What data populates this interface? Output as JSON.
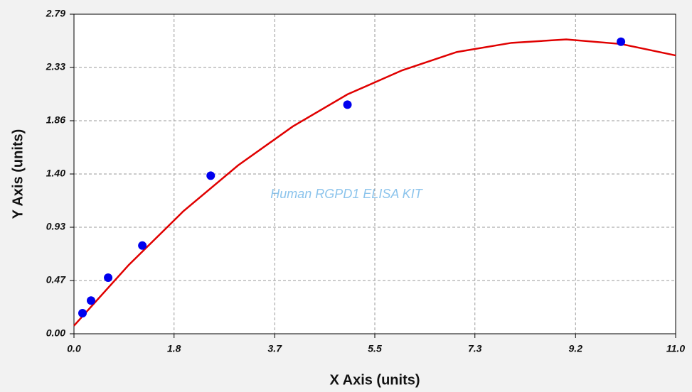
{
  "chart_data": {
    "type": "scatter",
    "xlabel": "X Axis (units)",
    "ylabel": "Y Axis (units)",
    "annotation": "Human RGPD1 ELISA KIT",
    "xlim": [
      0,
      11
    ],
    "ylim": [
      0,
      2.79
    ],
    "xticks": [
      {
        "value": 0,
        "label": "0.0"
      },
      {
        "value": 1.83,
        "label": "1.8"
      },
      {
        "value": 3.67,
        "label": "3.7"
      },
      5.5,
      {
        "value": 7.33,
        "label": "7.3"
      },
      {
        "value": 9.17,
        "label": "9.2"
      },
      {
        "value": 11,
        "label": "11.0"
      }
    ],
    "yticks": [
      {
        "value": 0,
        "label": "0.00"
      },
      {
        "value": 0.465,
        "label": "0.47"
      },
      0.93,
      {
        "value": 1.395,
        "label": "1.40"
      },
      1.86,
      {
        "value": 2.325,
        "label": "2.33"
      },
      2.79
    ],
    "grid": true,
    "series": [
      {
        "type": "line",
        "color": "#e00000",
        "x": [
          0,
          1,
          2,
          3,
          4,
          5,
          6,
          7,
          8,
          9,
          10,
          11
        ],
        "y": [
          0.07,
          0.6,
          1.07,
          1.47,
          1.81,
          2.09,
          2.3,
          2.46,
          2.54,
          2.57,
          2.53,
          2.43
        ]
      },
      {
        "type": "scatter",
        "color": "#0000ee",
        "x": [
          0.156,
          0.312,
          0.625,
          1.25,
          2.5,
          5,
          10
        ],
        "y": [
          0.18,
          0.29,
          0.49,
          0.77,
          1.38,
          2.0,
          2.55
        ]
      }
    ]
  }
}
